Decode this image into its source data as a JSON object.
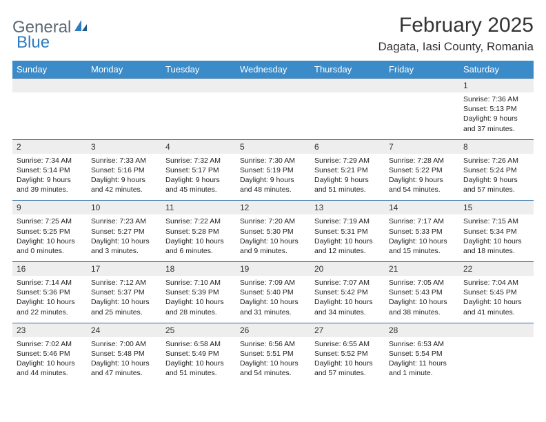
{
  "logo": {
    "word1": "General",
    "word2": "Blue"
  },
  "title": "February 2025",
  "location": "Dagata, Iasi County, Romania",
  "header_bg": "#3b8bc8",
  "daynum_bg": "#eeeeee",
  "divider_color": "#2f6fa8",
  "days": [
    "Sunday",
    "Monday",
    "Tuesday",
    "Wednesday",
    "Thursday",
    "Friday",
    "Saturday"
  ],
  "weeks": [
    [
      null,
      null,
      null,
      null,
      null,
      null,
      {
        "n": "1",
        "sr": "7:36 AM",
        "ss": "5:13 PM",
        "dl": "9 hours and 37 minutes."
      }
    ],
    [
      {
        "n": "2",
        "sr": "7:34 AM",
        "ss": "5:14 PM",
        "dl": "9 hours and 39 minutes."
      },
      {
        "n": "3",
        "sr": "7:33 AM",
        "ss": "5:16 PM",
        "dl": "9 hours and 42 minutes."
      },
      {
        "n": "4",
        "sr": "7:32 AM",
        "ss": "5:17 PM",
        "dl": "9 hours and 45 minutes."
      },
      {
        "n": "5",
        "sr": "7:30 AM",
        "ss": "5:19 PM",
        "dl": "9 hours and 48 minutes."
      },
      {
        "n": "6",
        "sr": "7:29 AM",
        "ss": "5:21 PM",
        "dl": "9 hours and 51 minutes."
      },
      {
        "n": "7",
        "sr": "7:28 AM",
        "ss": "5:22 PM",
        "dl": "9 hours and 54 minutes."
      },
      {
        "n": "8",
        "sr": "7:26 AM",
        "ss": "5:24 PM",
        "dl": "9 hours and 57 minutes."
      }
    ],
    [
      {
        "n": "9",
        "sr": "7:25 AM",
        "ss": "5:25 PM",
        "dl": "10 hours and 0 minutes."
      },
      {
        "n": "10",
        "sr": "7:23 AM",
        "ss": "5:27 PM",
        "dl": "10 hours and 3 minutes."
      },
      {
        "n": "11",
        "sr": "7:22 AM",
        "ss": "5:28 PM",
        "dl": "10 hours and 6 minutes."
      },
      {
        "n": "12",
        "sr": "7:20 AM",
        "ss": "5:30 PM",
        "dl": "10 hours and 9 minutes."
      },
      {
        "n": "13",
        "sr": "7:19 AM",
        "ss": "5:31 PM",
        "dl": "10 hours and 12 minutes."
      },
      {
        "n": "14",
        "sr": "7:17 AM",
        "ss": "5:33 PM",
        "dl": "10 hours and 15 minutes."
      },
      {
        "n": "15",
        "sr": "7:15 AM",
        "ss": "5:34 PM",
        "dl": "10 hours and 18 minutes."
      }
    ],
    [
      {
        "n": "16",
        "sr": "7:14 AM",
        "ss": "5:36 PM",
        "dl": "10 hours and 22 minutes."
      },
      {
        "n": "17",
        "sr": "7:12 AM",
        "ss": "5:37 PM",
        "dl": "10 hours and 25 minutes."
      },
      {
        "n": "18",
        "sr": "7:10 AM",
        "ss": "5:39 PM",
        "dl": "10 hours and 28 minutes."
      },
      {
        "n": "19",
        "sr": "7:09 AM",
        "ss": "5:40 PM",
        "dl": "10 hours and 31 minutes."
      },
      {
        "n": "20",
        "sr": "7:07 AM",
        "ss": "5:42 PM",
        "dl": "10 hours and 34 minutes."
      },
      {
        "n": "21",
        "sr": "7:05 AM",
        "ss": "5:43 PM",
        "dl": "10 hours and 38 minutes."
      },
      {
        "n": "22",
        "sr": "7:04 AM",
        "ss": "5:45 PM",
        "dl": "10 hours and 41 minutes."
      }
    ],
    [
      {
        "n": "23",
        "sr": "7:02 AM",
        "ss": "5:46 PM",
        "dl": "10 hours and 44 minutes."
      },
      {
        "n": "24",
        "sr": "7:00 AM",
        "ss": "5:48 PM",
        "dl": "10 hours and 47 minutes."
      },
      {
        "n": "25",
        "sr": "6:58 AM",
        "ss": "5:49 PM",
        "dl": "10 hours and 51 minutes."
      },
      {
        "n": "26",
        "sr": "6:56 AM",
        "ss": "5:51 PM",
        "dl": "10 hours and 54 minutes."
      },
      {
        "n": "27",
        "sr": "6:55 AM",
        "ss": "5:52 PM",
        "dl": "10 hours and 57 minutes."
      },
      {
        "n": "28",
        "sr": "6:53 AM",
        "ss": "5:54 PM",
        "dl": "11 hours and 1 minute."
      },
      null
    ]
  ],
  "labels": {
    "sunrise": "Sunrise:",
    "sunset": "Sunset:",
    "daylight": "Daylight:"
  }
}
